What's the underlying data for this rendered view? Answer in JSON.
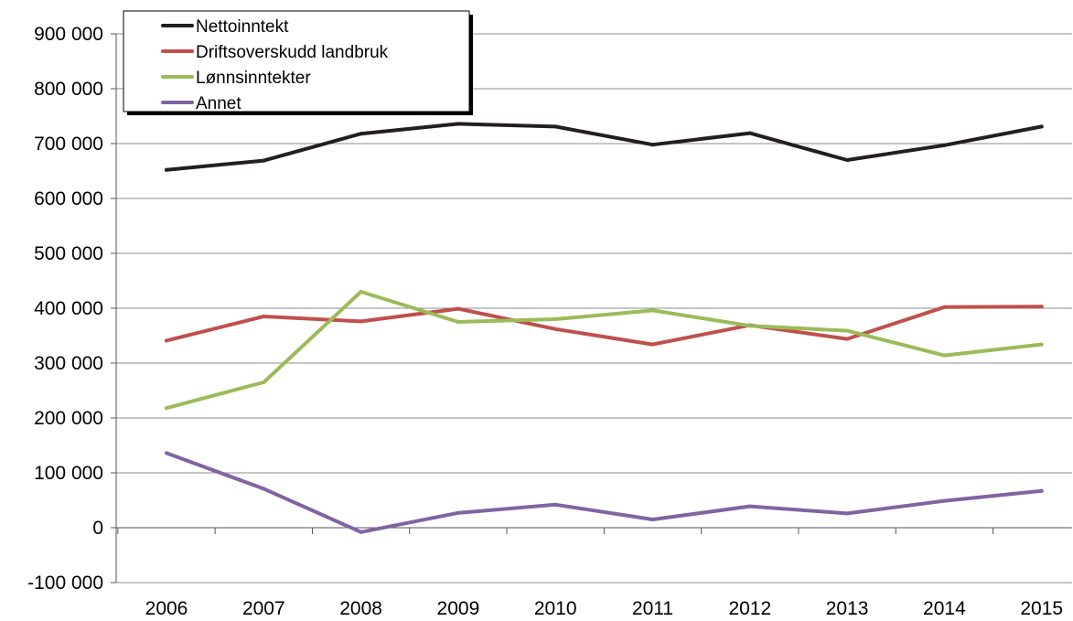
{
  "chart_data": {
    "type": "line",
    "title": "",
    "xlabel": "",
    "ylabel": "",
    "x": [
      "2006",
      "2007",
      "2008",
      "2009",
      "2010",
      "2011",
      "2012",
      "2013",
      "2014",
      "2015"
    ],
    "ylim": [
      -100000,
      900000
    ],
    "y_ticks": [
      -100000,
      0,
      100000,
      200000,
      300000,
      400000,
      500000,
      600000,
      700000,
      800000,
      900000
    ],
    "y_tick_labels": [
      "-100 000",
      "0",
      "100 000",
      "200 000",
      "300 000",
      "400 000",
      "500 000",
      "600 000",
      "700 000",
      "800 000",
      "900 000"
    ],
    "grid": "horizontal",
    "legend_position": "top-left",
    "series": [
      {
        "name": "Nettoinntekt",
        "color": "#231f20",
        "values": [
          652000,
          669000,
          718000,
          736000,
          731000,
          698000,
          719000,
          670000,
          697000,
          731000
        ]
      },
      {
        "name": "Driftsoverskudd landbruk",
        "color": "#c0504d",
        "values": [
          341000,
          385000,
          376000,
          399000,
          362000,
          334000,
          369000,
          344000,
          402000,
          403000
        ]
      },
      {
        "name": "Lønnsinntekter",
        "color": "#9bbb59",
        "values": [
          218000,
          265000,
          430000,
          375000,
          380000,
          396000,
          368000,
          359000,
          314000,
          334000
        ]
      },
      {
        "name": "Annet",
        "color": "#8064a2",
        "values": [
          136000,
          71000,
          -8000,
          27000,
          42000,
          15000,
          39000,
          26000,
          49000,
          67000
        ]
      }
    ]
  }
}
